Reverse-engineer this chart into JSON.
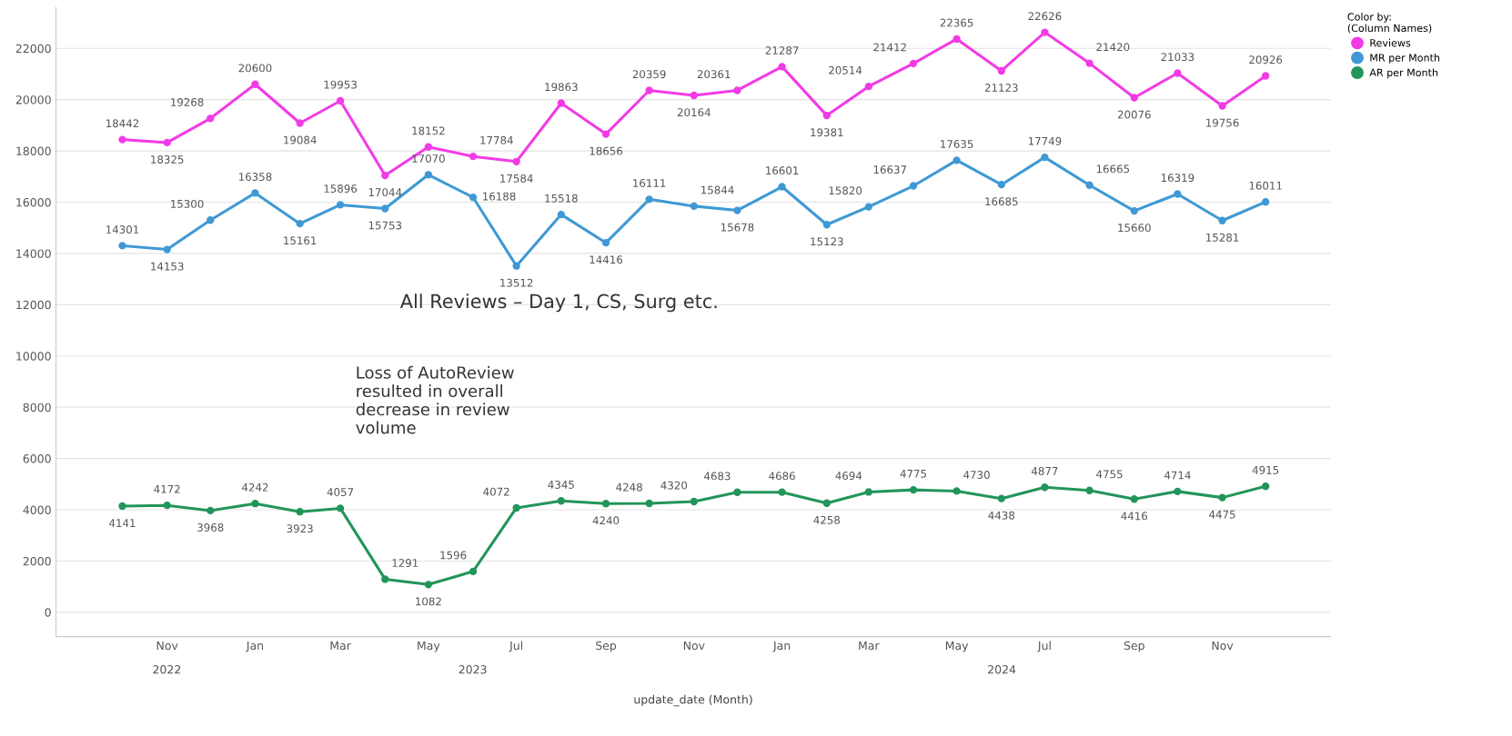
{
  "chart_data": {
    "type": "line",
    "xlabel": "update_date (Month)",
    "legend_title": "Color by:\n(Column Names)",
    "x": [
      "2022-10",
      "2022-11",
      "2022-12",
      "2023-01",
      "2023-02",
      "2023-03",
      "2023-04",
      "2023-05",
      "2023-06",
      "2023-07",
      "2023-08",
      "2023-09",
      "2023-10",
      "2023-11",
      "2023-12",
      "2024-01",
      "2024-02",
      "2024-03",
      "2024-04",
      "2024-05",
      "2024-06",
      "2024-07",
      "2024-08",
      "2024-09",
      "2024-10",
      "2024-11",
      "2024-12"
    ],
    "series": [
      {
        "name": "Reviews",
        "color": "#f23be6",
        "values": [
          18442,
          18325,
          19268,
          20600,
          19084,
          19953,
          17044,
          18152,
          17784,
          17584,
          19863,
          18656,
          20359,
          20164,
          20361,
          21287,
          19381,
          20514,
          21412,
          22365,
          21123,
          22626,
          21420,
          20076,
          21033,
          19756,
          20926
        ]
      },
      {
        "name": "MR per Month",
        "color": "#3f99d4",
        "values": [
          14301,
          14153,
          15300,
          16358,
          15161,
          15896,
          15753,
          17070,
          16188,
          13512,
          15518,
          14416,
          16111,
          15844,
          15678,
          16601,
          15123,
          15820,
          16637,
          17635,
          16685,
          17749,
          16665,
          15660,
          16319,
          15281,
          16011
        ]
      },
      {
        "name": "AR per Month",
        "color": "#22955a",
        "values": [
          4141,
          4172,
          3968,
          4242,
          3923,
          4057,
          1291,
          1082,
          1596,
          4072,
          4345,
          4240,
          4248,
          4320,
          4683,
          4686,
          4258,
          4694,
          4775,
          4730,
          4438,
          4877,
          4755,
          4416,
          4714,
          4475,
          4915
        ]
      }
    ],
    "xlim": [
      "2022-08-16",
      "2025-01-15"
    ],
    "xticks": [
      {
        "value": "2022-11",
        "label": "Nov"
      },
      {
        "value": "2023-01",
        "label": "Jan"
      },
      {
        "value": "2023-03",
        "label": "Mar"
      },
      {
        "value": "2023-05",
        "label": "May"
      },
      {
        "value": "2023-07",
        "label": "Jul"
      },
      {
        "value": "2023-09",
        "label": "Sep"
      },
      {
        "value": "2023-11",
        "label": "Nov"
      },
      {
        "value": "2024-01",
        "label": "Jan"
      },
      {
        "value": "2024-03",
        "label": "Mar"
      },
      {
        "value": "2024-05",
        "label": "May"
      },
      {
        "value": "2024-07",
        "label": "Jul"
      },
      {
        "value": "2024-09",
        "label": "Sep"
      },
      {
        "value": "2024-11",
        "label": "Nov"
      }
    ],
    "ylim": [
      -950,
      23600
    ],
    "yticks": [
      0,
      2000,
      4000,
      6000,
      8000,
      10000,
      12000,
      14000,
      16000,
      18000,
      20000,
      22000
    ],
    "annotations": [
      "2022",
      "2023",
      "2024",
      "All Reviews – Day 1, CS, Surg etc.",
      "Loss of AutoReview\nresulted in overall\ndecrease in review\nvolume"
    ],
    "data_labels": true,
    "marker": "circle",
    "line_style": "solid",
    "grid": "y",
    "legend": "top right"
  }
}
